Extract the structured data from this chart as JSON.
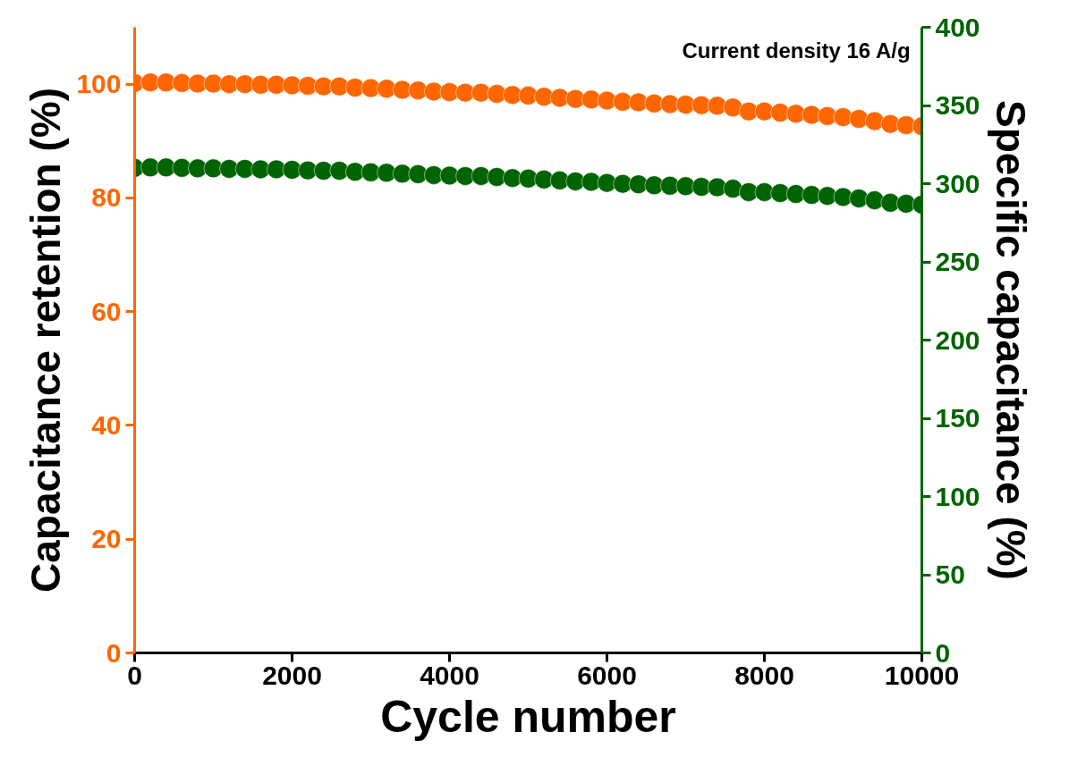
{
  "chart_data": {
    "type": "scatter",
    "xlabel": "Cycle number",
    "ylabel": "Capacitance retention (%)",
    "y2label": "Specific capacitance (%)",
    "annotations": [
      "Current density 16 A/g"
    ],
    "x": [
      0,
      200,
      400,
      600,
      800,
      1000,
      1200,
      1400,
      1600,
      1800,
      2000,
      2200,
      2400,
      2600,
      2800,
      3000,
      3200,
      3400,
      3600,
      3800,
      4000,
      4200,
      4400,
      4600,
      4800,
      5000,
      5200,
      5400,
      5600,
      5800,
      6000,
      6200,
      6400,
      6600,
      6800,
      7000,
      7200,
      7400,
      7600,
      7800,
      8000,
      8200,
      8400,
      8600,
      8800,
      9000,
      9200,
      9400,
      9600,
      9800,
      10000
    ],
    "series": [
      {
        "color": "#ff6600",
        "values": [
          100.2,
          100.3,
          100.3,
          100.2,
          100.1,
          100.1,
          100.0,
          100.0,
          99.9,
          99.9,
          99.8,
          99.7,
          99.6,
          99.6,
          99.4,
          99.3,
          99.2,
          99.0,
          98.9,
          98.7,
          98.6,
          98.5,
          98.5,
          98.3,
          98.1,
          98.0,
          97.8,
          97.6,
          97.4,
          97.3,
          97.1,
          96.9,
          96.8,
          96.6,
          96.5,
          96.4,
          96.3,
          96.2,
          95.9,
          95.2,
          95.2,
          95.0,
          94.8,
          94.6,
          94.4,
          94.2,
          93.9,
          93.5,
          93.0,
          92.8,
          92.6
        ]
      },
      {
        "color": "#006400",
        "axis": "y2",
        "values": [
          310.1,
          310.4,
          310.4,
          310.1,
          309.8,
          309.8,
          309.5,
          309.5,
          309.2,
          309.2,
          308.9,
          308.5,
          308.3,
          308.3,
          307.6,
          307.3,
          307.0,
          306.4,
          306.1,
          305.5,
          305.2,
          304.9,
          304.9,
          304.3,
          303.6,
          303.3,
          302.7,
          302.1,
          301.5,
          301.2,
          300.5,
          299.9,
          299.6,
          299.0,
          298.7,
          298.4,
          298.0,
          297.7,
          296.8,
          294.6,
          294.6,
          294.0,
          293.4,
          292.8,
          292.2,
          291.5,
          290.6,
          289.4,
          287.8,
          287.2,
          286.6
        ]
      }
    ],
    "xlim": [
      0,
      10000
    ],
    "xticks": [
      0,
      2000,
      4000,
      6000,
      8000,
      10000
    ],
    "ylim": [
      0,
      110
    ],
    "yticks": [
      0,
      20,
      40,
      60,
      80,
      100
    ],
    "y2lim": [
      0,
      400
    ],
    "y2ticks": [
      0,
      50,
      100,
      150,
      200,
      250,
      300,
      350,
      400
    ],
    "marker": "circle",
    "grid": false
  }
}
